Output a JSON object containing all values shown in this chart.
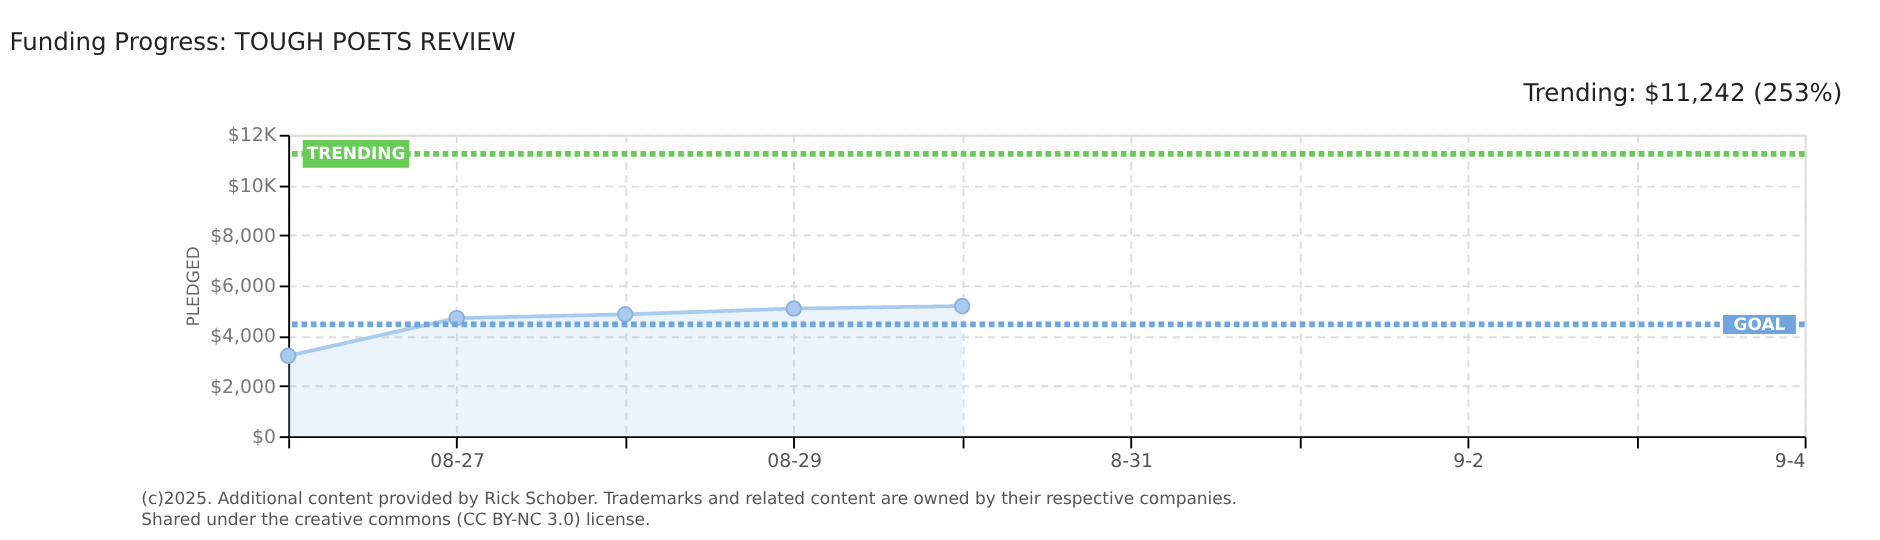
{
  "chart_data": {
    "type": "area",
    "title": "Funding Progress: TOUGH POETS REVIEW",
    "ylabel": "PLEDGED",
    "x": [
      "2025-08-26",
      "2025-08-27",
      "2025-08-28",
      "2025-08-29",
      "2025-08-30"
    ],
    "series": [
      {
        "color": "#a9cbef",
        "values": [
          3200,
          4700,
          4850,
          5080,
          5180
        ]
      }
    ],
    "marker": "circle",
    "grid": true,
    "xlim": [
      "2025-08-26",
      "2025-09-04"
    ],
    "xticks": [
      {
        "value": "2025-08-26",
        "label": null
      },
      {
        "value": "2025-08-27",
        "label": "08-27"
      },
      {
        "value": "2025-08-28",
        "label": null
      },
      {
        "value": "2025-08-29",
        "label": "08-29"
      },
      {
        "value": "2025-08-30",
        "label": null
      },
      {
        "value": "2025-08-31",
        "label": "8-31"
      },
      {
        "value": "2025-09-01",
        "label": null
      },
      {
        "value": "2025-09-02",
        "label": "9-2"
      },
      {
        "value": "2025-09-03",
        "label": null
      },
      {
        "value": "2025-09-04",
        "label": "9-4"
      }
    ],
    "ylim": [
      0,
      12000
    ],
    "yticks": [
      {
        "value": 0,
        "label": "$0"
      },
      {
        "value": 2000,
        "label": "$2,000"
      },
      {
        "value": 4000,
        "label": "$4,000"
      },
      {
        "value": 6000,
        "label": "$6,000"
      },
      {
        "value": 8000,
        "label": "$8,000"
      },
      {
        "value": 10000,
        "label": "$10K"
      },
      {
        "value": 12000,
        "label": "$12K"
      }
    ],
    "ref_lines": [
      {
        "axis": "y",
        "value": 11242,
        "label": "TRENDING",
        "color": "#66cc55",
        "line_style": "dotted"
      },
      {
        "axis": "y",
        "value": 4450,
        "label": "GOAL",
        "color": "#6fa6e0",
        "line_style": "dotted"
      }
    ],
    "annotations": [
      "Trending: $11,242 (253%)",
      "(c)2025. Additional content provided by Rick Schober. Trademarks and related content are owned by their respective companies.",
      "Shared under the creative commons (CC BY-NC 3.0) license."
    ]
  }
}
